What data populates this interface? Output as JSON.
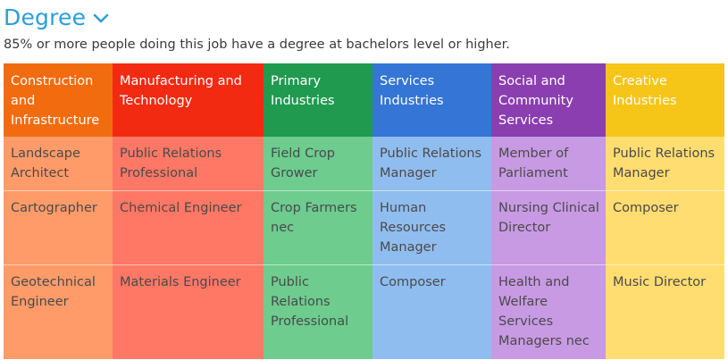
{
  "section": {
    "title": "Degree",
    "subtitle": "85% or more people doing this job have a degree at bachelors level or higher."
  },
  "icons": {
    "toggle": "chevron-down-icon"
  },
  "colors": {
    "title": "#2a9fd6",
    "header_colors": [
      "#f26c0f",
      "#f22a12",
      "#1f9a4f",
      "#3475d6",
      "#8a3eb0",
      "#f5c518"
    ],
    "cell_colors": [
      "#ff9b69",
      "#fe7865",
      "#6dcc8e",
      "#90bdf0",
      "#c89ae3",
      "#ffdd71"
    ]
  },
  "table": {
    "headers": [
      "Construction and Infrastructure",
      "Manufacturing and Technology",
      "Primary Industries",
      "Services Industries",
      "Social and Community Services",
      "Creative Industries"
    ],
    "rows": [
      [
        "Landscape Architect",
        "Public Relations Professional",
        "Field Crop Grower",
        "Public Relations Manager",
        "Member of Parliament",
        "Public Relations Manager"
      ],
      [
        "Cartographer",
        "Chemical Engineer",
        "Crop Farmers nec",
        "Human Resources Manager",
        "Nursing Clinical Director",
        "Composer"
      ],
      [
        "Geotechnical Engineer",
        "Materials Engineer",
        "Public Relations Professional",
        "Composer",
        "Health and Welfare Services Managers nec",
        "Music Director"
      ]
    ]
  }
}
